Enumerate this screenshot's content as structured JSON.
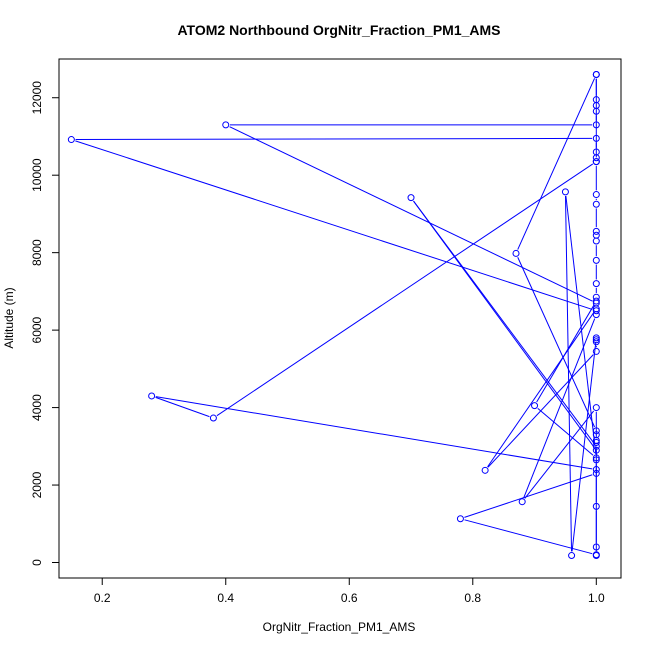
{
  "chart_data": {
    "type": "line",
    "title": "ATOM2 Northbound OrgNitr_Fraction_PM1_AMS",
    "xlabel": "OrgNitr_Fraction_PM1_AMS",
    "ylabel": "Altitude (m)",
    "xlim": [
      0.13,
      1.04
    ],
    "ylim": [
      -400,
      13000
    ],
    "x_ticks": [
      0.2,
      0.4,
      0.6,
      0.8,
      1.0
    ],
    "x_tick_labels": [
      "0.2",
      "0.4",
      "0.6",
      "0.8",
      "1.0"
    ],
    "y_ticks": [
      0,
      2000,
      4000,
      6000,
      8000,
      10000,
      12000
    ],
    "y_tick_labels": [
      "0",
      "2000",
      "4000",
      "6000",
      "8000",
      "10000",
      "12000"
    ],
    "series_color": "#0000ff",
    "grid": false,
    "series": [
      {
        "marker": "open-circle",
        "points": [
          [
            1.0,
            12600
          ],
          [
            1.0,
            11950
          ],
          [
            1.0,
            11800
          ],
          [
            1.0,
            11650
          ],
          [
            1.0,
            11300
          ],
          [
            0.4,
            11300
          ],
          [
            1.0,
            6700
          ],
          [
            1.0,
            6500
          ],
          [
            0.15,
            10920
          ],
          [
            1.0,
            10950
          ],
          [
            1.0,
            10600
          ],
          [
            1.0,
            10450
          ],
          [
            1.0,
            10350
          ],
          [
            0.38,
            3730
          ],
          [
            0.28,
            4300
          ],
          [
            1.0,
            2400
          ],
          [
            1.0,
            2300
          ],
          [
            0.78,
            1130
          ],
          [
            1.0,
            200
          ],
          [
            1.0,
            400
          ],
          [
            1.0,
            1450
          ],
          [
            1.0,
            2650
          ],
          [
            1.0,
            3000
          ],
          [
            0.7,
            9420
          ],
          [
            1.0,
            2900
          ],
          [
            1.0,
            3150
          ],
          [
            1.0,
            3300
          ],
          [
            1.0,
            3400
          ],
          [
            0.87,
            7980
          ],
          [
            1.0,
            12600
          ],
          [
            1.0,
            10350
          ],
          [
            1.0,
            9500
          ],
          [
            1.0,
            9250
          ],
          [
            1.0,
            8550
          ],
          [
            1.0,
            8450
          ],
          [
            1.0,
            8300
          ],
          [
            1.0,
            7800
          ],
          [
            1.0,
            7200
          ],
          [
            1.0,
            6850
          ],
          [
            1.0,
            6750
          ],
          [
            0.9,
            4050
          ],
          [
            1.0,
            2700
          ],
          [
            0.95,
            9570
          ],
          [
            0.96,
            180
          ],
          [
            1.0,
            5800
          ],
          [
            1.0,
            5750
          ],
          [
            1.0,
            5700
          ],
          [
            1.0,
            5450
          ],
          [
            0.82,
            2380
          ],
          [
            1.0,
            6550
          ],
          [
            1.0,
            6400
          ],
          [
            0.88,
            1570
          ],
          [
            1.0,
            4000
          ],
          [
            1.0,
            3100
          ],
          [
            1.0,
            180
          ]
        ]
      }
    ]
  }
}
